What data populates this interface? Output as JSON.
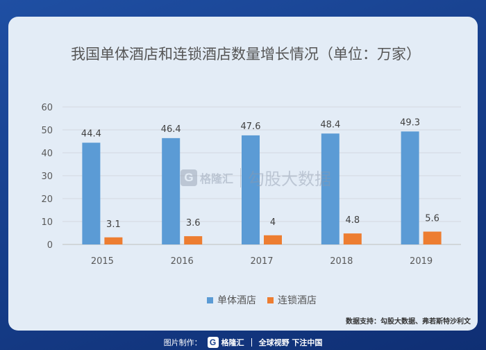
{
  "chart_data": {
    "type": "bar",
    "title": "我国单体酒店和连锁酒店数量增长情况（单位：万家）",
    "categories": [
      "2015",
      "2016",
      "2017",
      "2018",
      "2019"
    ],
    "series": [
      {
        "name": "单体酒店",
        "values": [
          44.4,
          46.4,
          47.6,
          48.4,
          49.3
        ],
        "labels": [
          "44.4",
          "46.4",
          "47.6",
          "48.4",
          "49.3"
        ],
        "color": "#5b9bd5"
      },
      {
        "name": "连锁酒店",
        "values": [
          3.1,
          3.6,
          4,
          4.8,
          5.6
        ],
        "labels": [
          "3.1",
          "3.6",
          "4",
          "4.8",
          "5.6"
        ],
        "color": "#ed7d31"
      }
    ],
    "yticks": [
      "0",
      "10",
      "20",
      "30",
      "40",
      "50",
      "60"
    ],
    "ylim": [
      0,
      60
    ],
    "grid": true,
    "legend": "bottom"
  },
  "watermark": {
    "brand": "格隆汇",
    "text": "勾股大数据"
  },
  "source": "数据支持：勾股大数据、弗若斯特沙利文",
  "footer": {
    "credit": "图片制作：",
    "brand": "格隆汇",
    "slogan": "全球视野 下注中国"
  }
}
